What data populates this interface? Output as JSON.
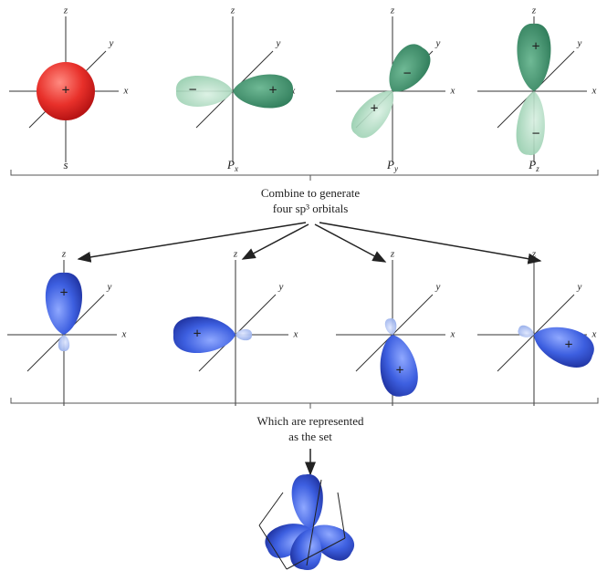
{
  "axis_labels": {
    "x": "x",
    "y": "y",
    "z": "z"
  },
  "signs": {
    "plus": "+",
    "minus": "−"
  },
  "atomic_orbitals": [
    {
      "letter": "s",
      "subscript": null
    },
    {
      "letter": "P",
      "subscript": "x"
    },
    {
      "letter": "P",
      "subscript": "y"
    },
    {
      "letter": "P",
      "subscript": "z"
    }
  ],
  "combine_caption": {
    "line1": "Combine to generate",
    "line2": "four sp³ orbitals"
  },
  "set_caption": {
    "line1": "Which are represented",
    "line2": "as the set"
  }
}
